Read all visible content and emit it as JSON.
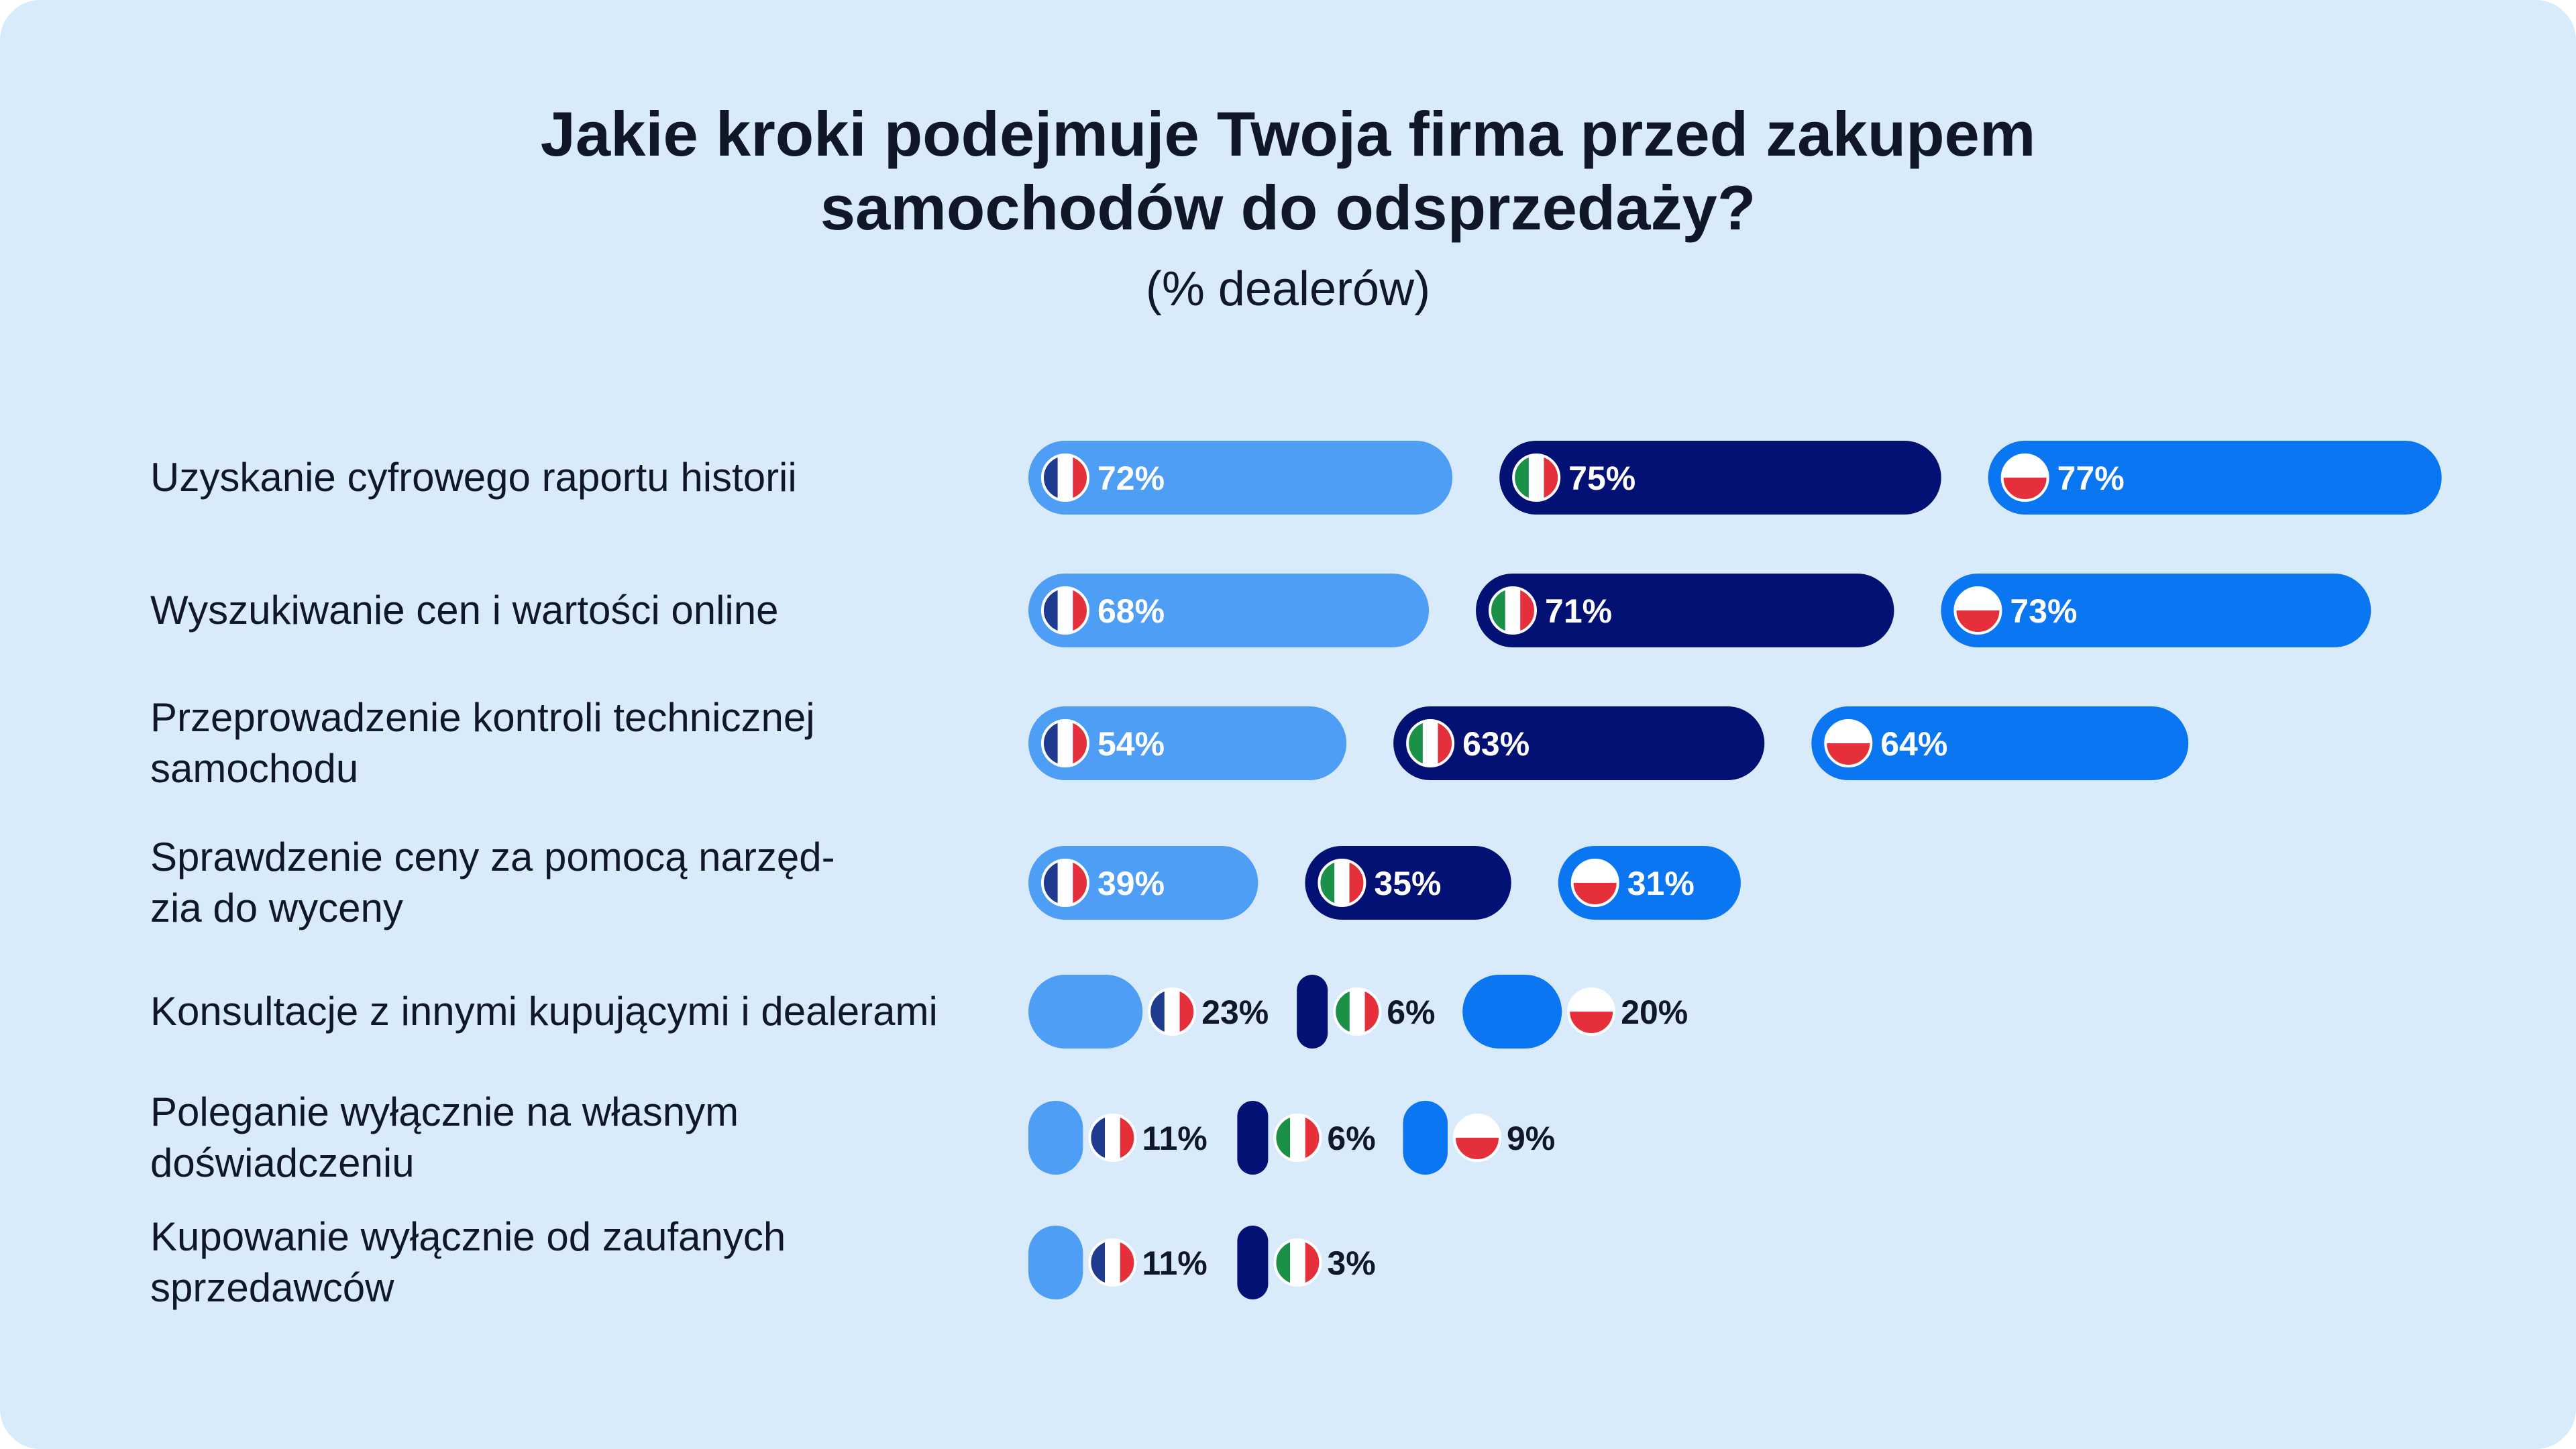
{
  "chart_data": {
    "type": "bar",
    "title_lines": [
      "Jakie kroki podejmuje Twoja firma przed zakupem",
      "samochodów do odsprzedaży?"
    ],
    "subtitle": "(% dealerów)",
    "value_suffix": "%",
    "categories": [
      [
        "Uzyskanie cyfrowego raportu historii"
      ],
      [
        "Wyszukiwanie cen i wartości online"
      ],
      [
        "Przeprowadzenie kontroli technicznej",
        "samochodu"
      ],
      [
        "Sprawdzenie ceny za pomocą narzęd-",
        "zia do wyceny"
      ],
      [
        "Konsultacje z innymi kupującymi i dealerami"
      ],
      [
        "Poleganie wyłącznie na własnym",
        "doświadczeniu"
      ],
      [
        "Kupowanie wyłącznie od zaufanych",
        "sprzedawców"
      ]
    ],
    "series": [
      {
        "name": "France",
        "flag": "france-flag",
        "color": "#4f9ef5",
        "values": [
          72,
          68,
          54,
          39,
          23,
          11,
          11
        ]
      },
      {
        "name": "Italy",
        "flag": "italy-flag",
        "color": "#031175",
        "values": [
          75,
          71,
          63,
          35,
          6,
          6,
          3
        ]
      },
      {
        "name": "Poland",
        "flag": "poland-flag",
        "color": "#0a76f2",
        "values": [
          77,
          73,
          64,
          31,
          20,
          9,
          null
        ]
      }
    ]
  },
  "colors": {
    "background": "#d9ebfa",
    "text": "#101828",
    "flag_blue": "#1f3b8f",
    "flag_red": "#e5303c",
    "flag_green": "#1a9147"
  }
}
